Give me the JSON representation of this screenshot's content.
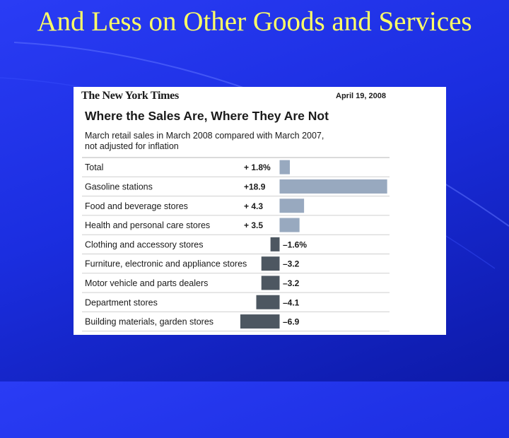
{
  "slide": {
    "title": "And Less on Other Goods and Services"
  },
  "graphic": {
    "masthead": "The New York Times",
    "date": "April 19, 2008",
    "headline": "Where the Sales Are, Where They Are Not",
    "subhead_lines": [
      "March retail sales in March 2008 compared with March 2007,",
      "not adjusted for inflation"
    ]
  },
  "colors": {
    "background": "#1b2ee0",
    "title": "#ffff66",
    "positive_bar": "#98a9bf",
    "negative_bar": "#4d5761"
  },
  "chart_data": {
    "type": "bar",
    "orientation": "horizontal",
    "unit": "%",
    "categories": [
      "Total",
      "Gasoline stations",
      "Food and beverage stores",
      "Health and personal care stores",
      "Clothing and accessory stores",
      "Furniture, electronic and appliance stores",
      "Motor vehicle and parts dealers",
      "Department stores",
      "Building materials, garden stores"
    ],
    "values": [
      1.8,
      18.9,
      4.3,
      3.5,
      -1.6,
      -3.2,
      -3.2,
      -4.1,
      -6.9
    ],
    "value_labels": [
      "+  1.8%",
      "+18.9",
      "+  4.3",
      "+  3.5",
      "–1.6%",
      "–3.2",
      "–3.2",
      "–4.1",
      "–6.9"
    ],
    "xlim": [
      -6.9,
      18.9
    ],
    "grid": false,
    "legend": "none"
  }
}
